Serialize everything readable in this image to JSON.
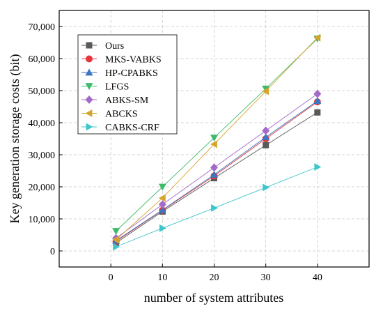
{
  "chart_data": {
    "type": "line",
    "xlabel": "number of system attributes",
    "ylabel": "Key generation storage costs (bit)",
    "xlim": [
      -10,
      50
    ],
    "ylim": [
      -5000,
      75000
    ],
    "x_ticks": [
      0,
      10,
      20,
      30,
      40
    ],
    "x_tick_labels": [
      "0",
      "10",
      "20",
      "30",
      "40"
    ],
    "y_ticks": [
      0,
      10000,
      20000,
      30000,
      40000,
      50000,
      60000,
      70000
    ],
    "y_tick_labels": [
      "0",
      "10,000",
      "20,000",
      "30,000",
      "40,000",
      "50,000",
      "60,000",
      "70,000"
    ],
    "grid": true,
    "legend_position": "top-left",
    "x": [
      1,
      10,
      20,
      30,
      40
    ],
    "series": [
      {
        "name": "Ours",
        "color": "#595959",
        "marker": "square",
        "values": [
          2500,
          12300,
          22700,
          33000,
          43200
        ]
      },
      {
        "name": "MKS-VABKS",
        "color": "#e8343a",
        "marker": "circle",
        "values": [
          3000,
          12700,
          23400,
          35000,
          46500
        ]
      },
      {
        "name": "HP-CPABKS",
        "color": "#3a76c2",
        "marker": "triangle-up",
        "values": [
          3200,
          12800,
          23800,
          35500,
          46800
        ]
      },
      {
        "name": "LFGS",
        "color": "#3fba6b",
        "marker": "triangle-down",
        "values": [
          6200,
          20000,
          35300,
          50600,
          66200
        ]
      },
      {
        "name": "ABKS-SM",
        "color": "#a36bc8",
        "marker": "diamond",
        "values": [
          4000,
          14500,
          26000,
          37500,
          49000
        ]
      },
      {
        "name": "ABCKS",
        "color": "#d4a52c",
        "marker": "triangle-left",
        "values": [
          3500,
          16500,
          33300,
          49800,
          66500
        ]
      },
      {
        "name": "CABKS-CRF",
        "color": "#3fc6cc",
        "marker": "triangle-right",
        "values": [
          1300,
          7100,
          13400,
          19800,
          26200
        ]
      }
    ]
  }
}
